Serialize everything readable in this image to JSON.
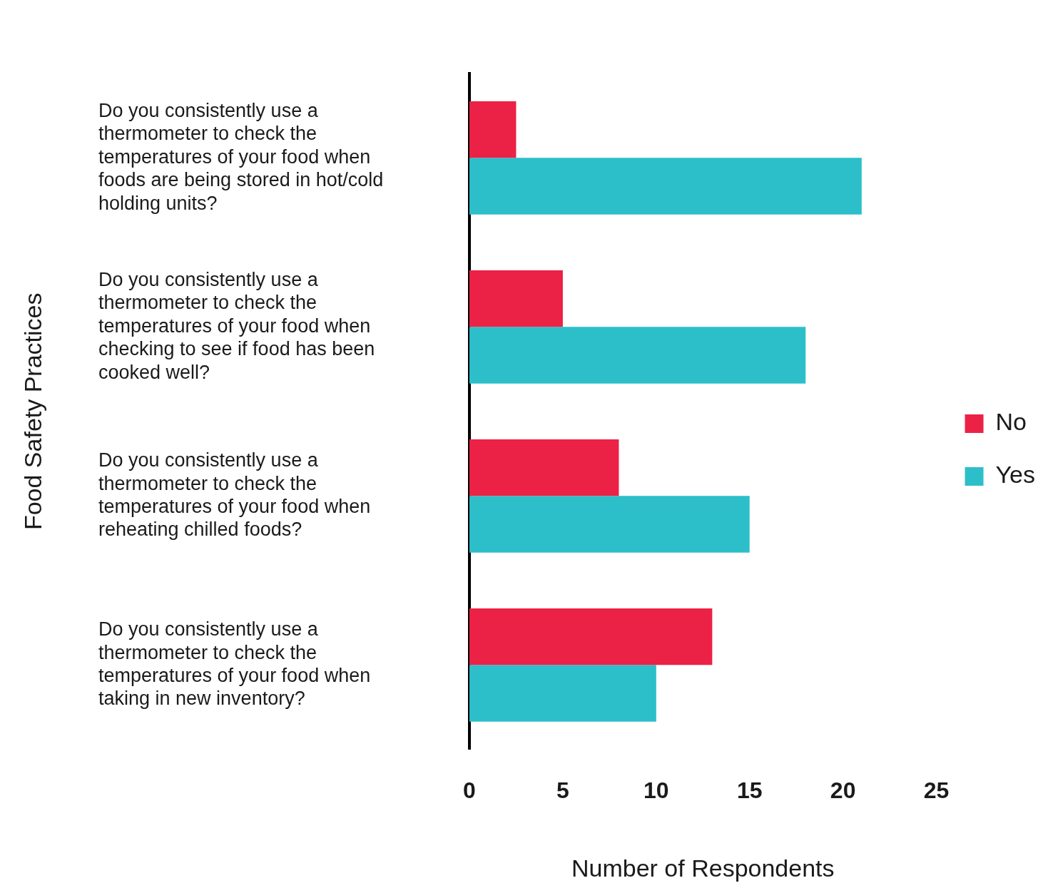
{
  "chart_data": {
    "type": "bar",
    "orientation": "horizontal",
    "xlabel": "Number of Respondents",
    "ylabel": "Food Safety Practices",
    "categories": [
      "Do you consistently use a thermometer to check the temperatures of your food when foods are being stored in hot/cold holding units?",
      "Do you consistently use a thermometer to check the temperatures of your food when checking to see if food has been cooked well?",
      "Do you consistently use a thermometer to check the temperatures of your food when reheating chilled foods?",
      "Do you consistently use a thermometer to check the temperatures of your food when taking in new inventory?"
    ],
    "series": [
      {
        "name": "No",
        "color": "#ec2146",
        "values": [
          2.5,
          5,
          8,
          13
        ]
      },
      {
        "name": "Yes",
        "color": "#2cbfc9",
        "values": [
          21,
          18,
          15,
          10
        ]
      }
    ],
    "xlim": [
      0,
      25
    ],
    "xticks": [
      0,
      5,
      10,
      15,
      20,
      25
    ],
    "grid": false,
    "legend": "right"
  }
}
